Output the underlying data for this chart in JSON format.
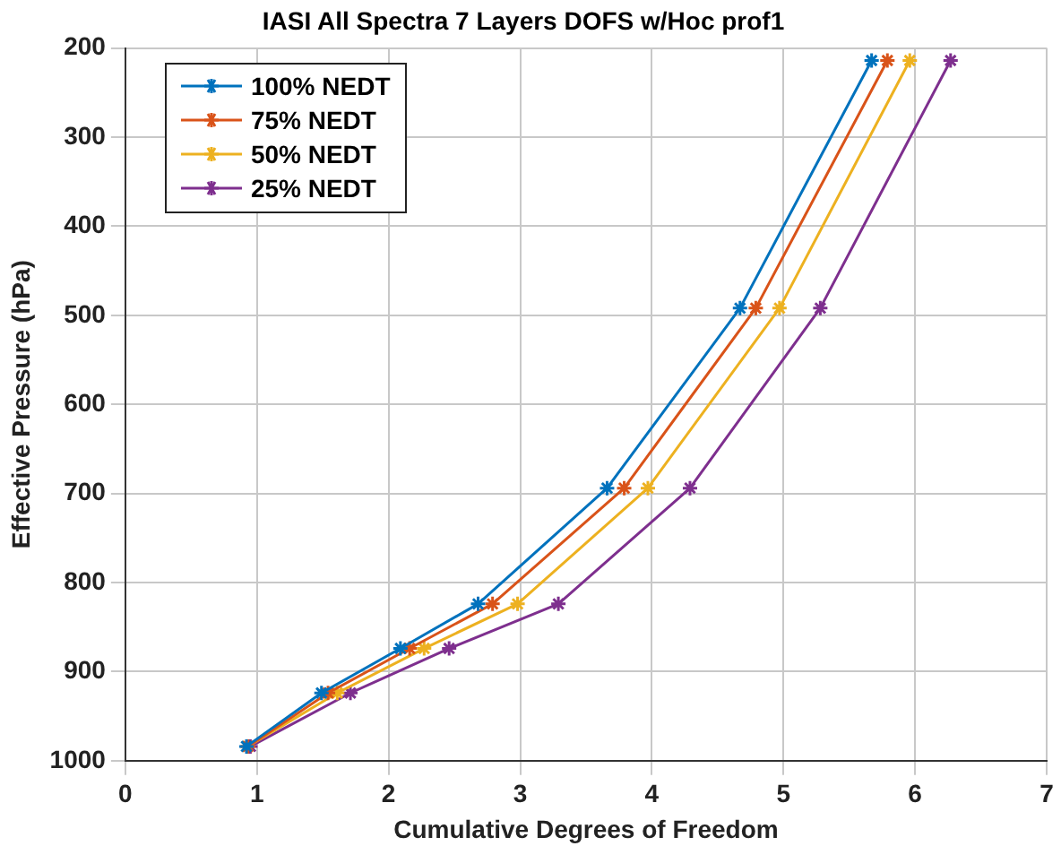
{
  "chart_data": {
    "type": "line",
    "title": "IASI All Spectra 7 Layers DOFS w/Hoc prof1",
    "xlabel": "Cumulative Degrees of Freedom",
    "ylabel": "Effective Pressure (hPa)",
    "xlim": [
      0,
      7
    ],
    "xticks": [
      0,
      1,
      2,
      3,
      4,
      5,
      6,
      7
    ],
    "ylim": [
      1000,
      200
    ],
    "yticks": [
      200,
      300,
      400,
      500,
      600,
      700,
      800,
      900,
      1000
    ],
    "grid": true,
    "legend": "top left",
    "marker": "cross",
    "line_style": "solid",
    "series": [
      {
        "name": "100% NEDT",
        "color": "#0072bd",
        "x": [
          0.92,
          1.49,
          2.09,
          2.68,
          3.66,
          4.67,
          5.67
        ],
        "values": [
          984,
          924,
          874,
          824,
          694,
          492,
          214
        ]
      },
      {
        "name": "75% NEDT",
        "color": "#d95319",
        "x": [
          0.93,
          1.54,
          2.16,
          2.79,
          3.79,
          4.79,
          5.79
        ],
        "values": [
          984,
          924,
          874,
          824,
          694,
          492,
          214
        ]
      },
      {
        "name": "50% NEDT",
        "color": "#edb120",
        "x": [
          0.93,
          1.61,
          2.27,
          2.98,
          3.97,
          4.97,
          5.96
        ],
        "values": [
          984,
          924,
          874,
          824,
          694,
          492,
          214
        ]
      },
      {
        "name": "25% NEDT",
        "color": "#7e2f8e",
        "x": [
          0.95,
          1.71,
          2.46,
          3.29,
          4.29,
          5.28,
          6.27
        ],
        "values": [
          984,
          924,
          874,
          824,
          694,
          492,
          214
        ]
      }
    ]
  }
}
